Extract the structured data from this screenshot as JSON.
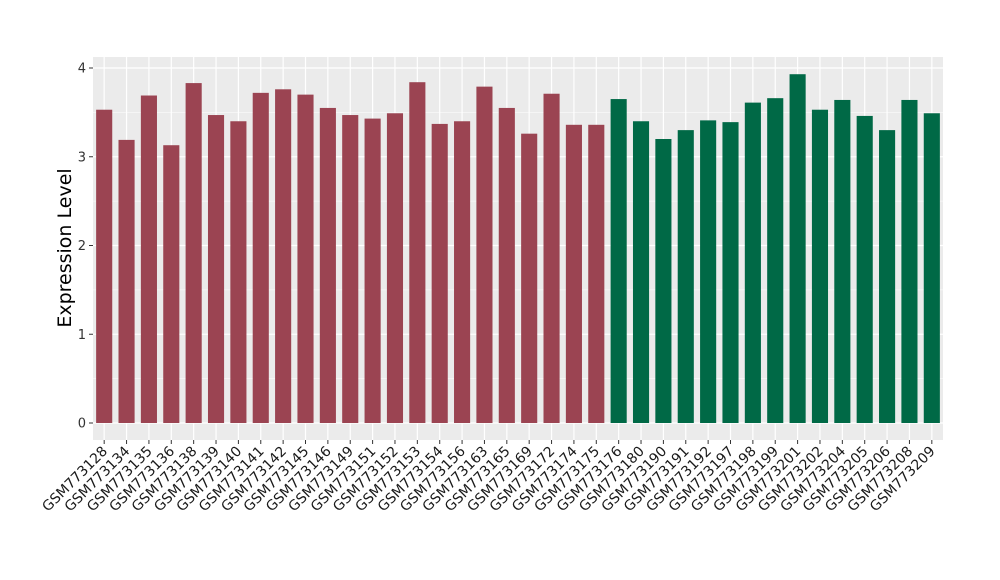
{
  "chart_data": {
    "type": "bar",
    "ylabel": "Expression Level",
    "xlabel": "",
    "ylim": [
      -0.15,
      4.12
    ],
    "yticks": [
      0,
      1,
      2,
      3,
      4
    ],
    "grid": true,
    "legend": "none",
    "panel_background": "#EBEBEB",
    "grid_color": "#FFFFFF",
    "categories": [
      "GSM773128",
      "GSM773134",
      "GSM773135",
      "GSM773136",
      "GSM773138",
      "GSM773139",
      "GSM773140",
      "GSM773141",
      "GSM773142",
      "GSM773145",
      "GSM773146",
      "GSM773149",
      "GSM773151",
      "GSM773152",
      "GSM773153",
      "GSM773154",
      "GSM773156",
      "GSM773163",
      "GSM773165",
      "GSM773169",
      "GSM773172",
      "GSM773174",
      "GSM773175",
      "GSM773176",
      "GSM773180",
      "GSM773190",
      "GSM773191",
      "GSM773192",
      "GSM773197",
      "GSM773198",
      "GSM773199",
      "GSM773201",
      "GSM773202",
      "GSM773204",
      "GSM773205",
      "GSM773206",
      "GSM773208",
      "GSM773209"
    ],
    "values": [
      3.53,
      3.19,
      3.69,
      3.13,
      3.83,
      3.47,
      3.4,
      3.72,
      3.76,
      3.7,
      3.55,
      3.47,
      3.43,
      3.49,
      3.84,
      3.37,
      3.4,
      3.79,
      3.55,
      3.26,
      3.71,
      3.36,
      3.36,
      3.65,
      3.4,
      3.2,
      3.3,
      3.41,
      3.39,
      3.61,
      3.66,
      3.93,
      3.53,
      3.64,
      3.46,
      3.3,
      3.64,
      3.49
    ],
    "groups": [
      0,
      0,
      0,
      0,
      0,
      0,
      0,
      0,
      0,
      0,
      0,
      0,
      0,
      0,
      0,
      0,
      0,
      0,
      0,
      0,
      0,
      0,
      0,
      1,
      1,
      1,
      1,
      1,
      1,
      1,
      1,
      1,
      1,
      1,
      1,
      1,
      1,
      1
    ],
    "group_colors": [
      "#9B4452",
      "#006946"
    ]
  }
}
